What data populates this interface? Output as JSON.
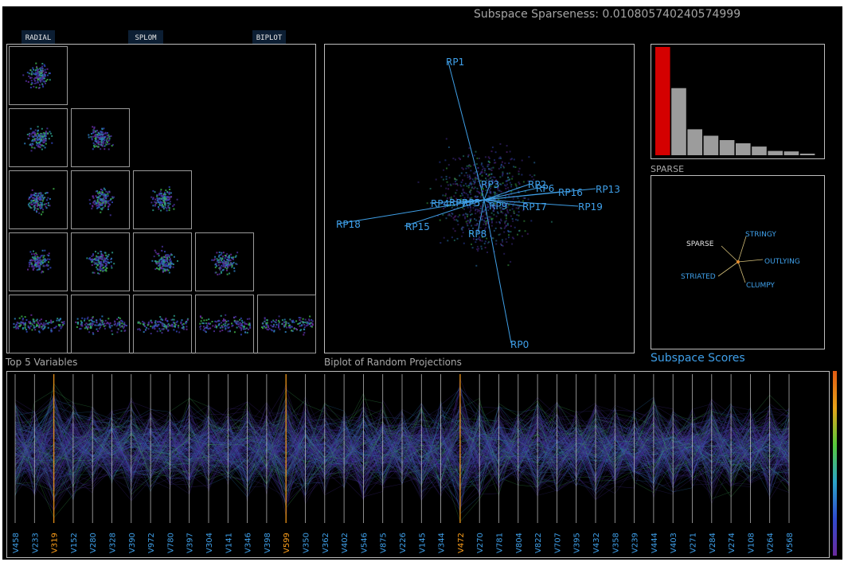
{
  "header": {
    "title": "Subspace Sparseness: 0.010805740240574999"
  },
  "tabs": [
    {
      "label": "RADIAL",
      "name": "tab-radial"
    },
    {
      "label": "SPLOM",
      "name": "tab-splom"
    },
    {
      "label": "BIPLOT",
      "name": "tab-biplot"
    }
  ],
  "panels": {
    "splom_caption": "Top 5 Variables",
    "biplot_caption": "Biplot of Random Projections",
    "histogram_caption": "SPARSE",
    "scores_title": "Subspace Scores"
  },
  "biplot": {
    "labels": [
      "RP1",
      "RP3",
      "RP2",
      "RP6",
      "RP16",
      "RP13",
      "RP19",
      "RP17",
      "RP4",
      "RP7",
      "RP5",
      "RP8",
      "RP9",
      "RP18",
      "RP15",
      "RP0"
    ]
  },
  "histogram": {
    "values": [
      1.0,
      0.62,
      0.24,
      0.18,
      0.14,
      0.11,
      0.08,
      0.04,
      0.035,
      0.015
    ],
    "highlight_index": 0,
    "highlight_color": "#d40000",
    "bar_color": "#9c9c9c"
  },
  "scores_graph": {
    "labels": [
      "SPARSE",
      "STRINGY",
      "OUTLYING",
      "CLUMPY",
      "STRIATED"
    ],
    "highlight_label": "SPARSE",
    "label_color": "#3fa0ea"
  },
  "parallel": {
    "variables": [
      "V458",
      "V233",
      "V319",
      "V152",
      "V280",
      "V328",
      "V390",
      "V972",
      "V780",
      "V397",
      "V304",
      "V141",
      "V346",
      "V398",
      "V599",
      "V350",
      "V362",
      "V402",
      "V546",
      "V875",
      "V226",
      "V145",
      "V344",
      "V472",
      "V270",
      "V781",
      "V804",
      "V822",
      "V707",
      "V395",
      "V432",
      "V358",
      "V239",
      "V444",
      "V403",
      "V271",
      "V284",
      "V274",
      "V108",
      "V264",
      "V568"
    ],
    "highlighted": [
      "V319",
      "V599",
      "V472"
    ],
    "label_color": "#3fa0ea",
    "highlight_color": "#ff9f1a"
  }
}
